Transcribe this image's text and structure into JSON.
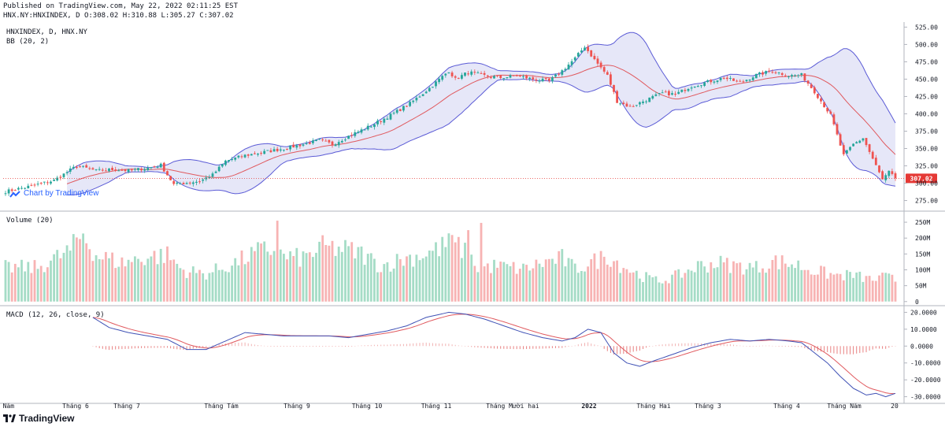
{
  "header": {
    "published": "Published on TradingView.com, May 22, 2022 02:11:25 EST",
    "ohlc": "HNX.NY:HNXINDEX, D O:308.02 H:310.88 L:305.27 C:307.02"
  },
  "watermark": "Chart by TradingView",
  "brand": "TradingView",
  "colors": {
    "up": "#26a69a",
    "down": "#ef5350",
    "vol_up": "#a5dcc6",
    "vol_down": "#f7b3b3",
    "bb_fill": "#e3e4f7",
    "bb_band": "#5b5bd6",
    "bb_mid": "#e0595e",
    "macd": "#3f51b5",
    "signal": "#e0595e",
    "last_price": "#e53935"
  },
  "chart_data": [
    {
      "type": "candlestick",
      "title": "HNXINDEX, D, HNX.NY",
      "indicator": "BB (20, 2)",
      "x_ticks": [
        "g Năm",
        "Tháng 6",
        "Tháng 7",
        "Tháng Tám",
        "Tháng 9",
        "Tháng 10",
        "Tháng 11",
        "Tháng Mười hai",
        "2022",
        "Tháng Hai",
        "Tháng 3",
        "Tháng 4",
        "Tháng Năm",
        "20"
      ],
      "y_ticks": [
        275,
        300,
        325,
        350,
        375,
        400,
        425,
        450,
        475,
        500,
        525
      ],
      "y_tick_labels": [
        "275.00",
        "300.00",
        "325.00",
        "350.00",
        "375.00",
        "400.00",
        "425.00",
        "450.00",
        "475.00",
        "500.00",
        "525.00"
      ],
      "ylim": [
        262,
        530
      ],
      "last_price": 307.02,
      "last_price_label": "307.02",
      "close_anchors": [
        [
          0,
          288
        ],
        [
          8,
          296
        ],
        [
          15,
          304
        ],
        [
          22,
          325
        ],
        [
          28,
          318
        ],
        [
          34,
          320
        ],
        [
          38,
          318
        ],
        [
          44,
          322
        ],
        [
          48,
          326
        ],
        [
          52,
          298
        ],
        [
          55,
          300
        ],
        [
          60,
          303
        ],
        [
          64,
          312
        ],
        [
          68,
          332
        ],
        [
          74,
          340
        ],
        [
          80,
          345
        ],
        [
          86,
          350
        ],
        [
          92,
          356
        ],
        [
          97,
          362
        ],
        [
          101,
          356
        ],
        [
          107,
          370
        ],
        [
          113,
          383
        ],
        [
          119,
          398
        ],
        [
          125,
          415
        ],
        [
          131,
          437
        ],
        [
          137,
          462
        ],
        [
          139,
          450
        ],
        [
          143,
          460
        ],
        [
          148,
          455
        ],
        [
          153,
          452
        ],
        [
          158,
          455
        ],
        [
          163,
          450
        ],
        [
          168,
          447
        ],
        [
          172,
          462
        ],
        [
          176,
          480
        ],
        [
          179,
          497
        ],
        [
          182,
          478
        ],
        [
          186,
          455
        ],
        [
          189,
          418
        ],
        [
          193,
          410
        ],
        [
          198,
          420
        ],
        [
          203,
          430
        ],
        [
          207,
          428
        ],
        [
          212,
          440
        ],
        [
          217,
          446
        ],
        [
          222,
          452
        ],
        [
          227,
          445
        ],
        [
          232,
          456
        ],
        [
          237,
          462
        ],
        [
          242,
          455
        ],
        [
          246,
          456
        ],
        [
          250,
          432
        ],
        [
          255,
          398
        ],
        [
          259,
          340
        ],
        [
          262,
          356
        ],
        [
          265,
          365
        ],
        [
          268,
          335
        ],
        [
          271,
          305
        ],
        [
          273,
          316
        ],
        [
          275,
          307.02
        ]
      ]
    },
    {
      "type": "bar",
      "title": "Volume (20)",
      "y_ticks": [
        0,
        50,
        100,
        150,
        200,
        250
      ],
      "y_tick_labels": [
        "0",
        "50M",
        "100M",
        "150M",
        "200M",
        "250M"
      ],
      "ylim": [
        -8,
        275
      ],
      "volume_anchors": [
        [
          0,
          110
        ],
        [
          10,
          110
        ],
        [
          20,
          165
        ],
        [
          24,
          220
        ],
        [
          28,
          150
        ],
        [
          36,
          125
        ],
        [
          44,
          145
        ],
        [
          50,
          150
        ],
        [
          55,
          100
        ],
        [
          62,
          90
        ],
        [
          70,
          120
        ],
        [
          78,
          160
        ],
        [
          82,
          170
        ],
        [
          86,
          145
        ],
        [
          92,
          140
        ],
        [
          98,
          175
        ],
        [
          104,
          170
        ],
        [
          110,
          155
        ],
        [
          116,
          115
        ],
        [
          122,
          135
        ],
        [
          130,
          155
        ],
        [
          136,
          180
        ],
        [
          140,
          180
        ],
        [
          146,
          110
        ],
        [
          152,
          115
        ],
        [
          160,
          105
        ],
        [
          166,
          125
        ],
        [
          172,
          140
        ],
        [
          176,
          105
        ],
        [
          182,
          130
        ],
        [
          186,
          150
        ],
        [
          190,
          120
        ],
        [
          196,
          85
        ],
        [
          202,
          65
        ],
        [
          208,
          85
        ],
        [
          214,
          115
        ],
        [
          220,
          125
        ],
        [
          226,
          115
        ],
        [
          232,
          110
        ],
        [
          238,
          130
        ],
        [
          244,
          120
        ],
        [
          250,
          100
        ],
        [
          256,
          85
        ],
        [
          262,
          85
        ],
        [
          268,
          70
        ],
        [
          272,
          80
        ],
        [
          275,
          70
        ]
      ],
      "volume_spikes": [
        [
          84,
          255
        ],
        [
          147,
          248
        ],
        [
          137,
          215
        ],
        [
          143,
          225
        ]
      ]
    },
    {
      "type": "line",
      "title": "MACD (12, 26, close, 9)",
      "y_ticks": [
        -30,
        -20,
        -10,
        0,
        10,
        20
      ],
      "y_tick_labels": [
        "-30.0000",
        "-20.0000",
        "-10.0000",
        "0.0000",
        "10.0000",
        "20.0000"
      ],
      "ylim": [
        -33,
        23
      ],
      "macd_anchors": [
        [
          27,
          17
        ],
        [
          32,
          11
        ],
        [
          38,
          8
        ],
        [
          44,
          6
        ],
        [
          50,
          4
        ],
        [
          56,
          -2
        ],
        [
          62,
          -2
        ],
        [
          68,
          3
        ],
        [
          74,
          8
        ],
        [
          80,
          7
        ],
        [
          86,
          6
        ],
        [
          94,
          6
        ],
        [
          100,
          6
        ],
        [
          106,
          5
        ],
        [
          112,
          7
        ],
        [
          118,
          9
        ],
        [
          124,
          12
        ],
        [
          130,
          17
        ],
        [
          137,
          20
        ],
        [
          142,
          19
        ],
        [
          148,
          16
        ],
        [
          154,
          12
        ],
        [
          160,
          8
        ],
        [
          166,
          5
        ],
        [
          172,
          3
        ],
        [
          176,
          5
        ],
        [
          180,
          10
        ],
        [
          184,
          8
        ],
        [
          188,
          -4
        ],
        [
          192,
          -10
        ],
        [
          196,
          -12
        ],
        [
          200,
          -9
        ],
        [
          206,
          -5
        ],
        [
          212,
          -1
        ],
        [
          218,
          2
        ],
        [
          224,
          4
        ],
        [
          230,
          3
        ],
        [
          236,
          4
        ],
        [
          242,
          3
        ],
        [
          246,
          2
        ],
        [
          250,
          -4
        ],
        [
          254,
          -10
        ],
        [
          258,
          -18
        ],
        [
          262,
          -25
        ],
        [
          266,
          -29
        ],
        [
          269,
          -28
        ],
        [
          272,
          -30
        ],
        [
          275,
          -28
        ]
      ]
    }
  ]
}
